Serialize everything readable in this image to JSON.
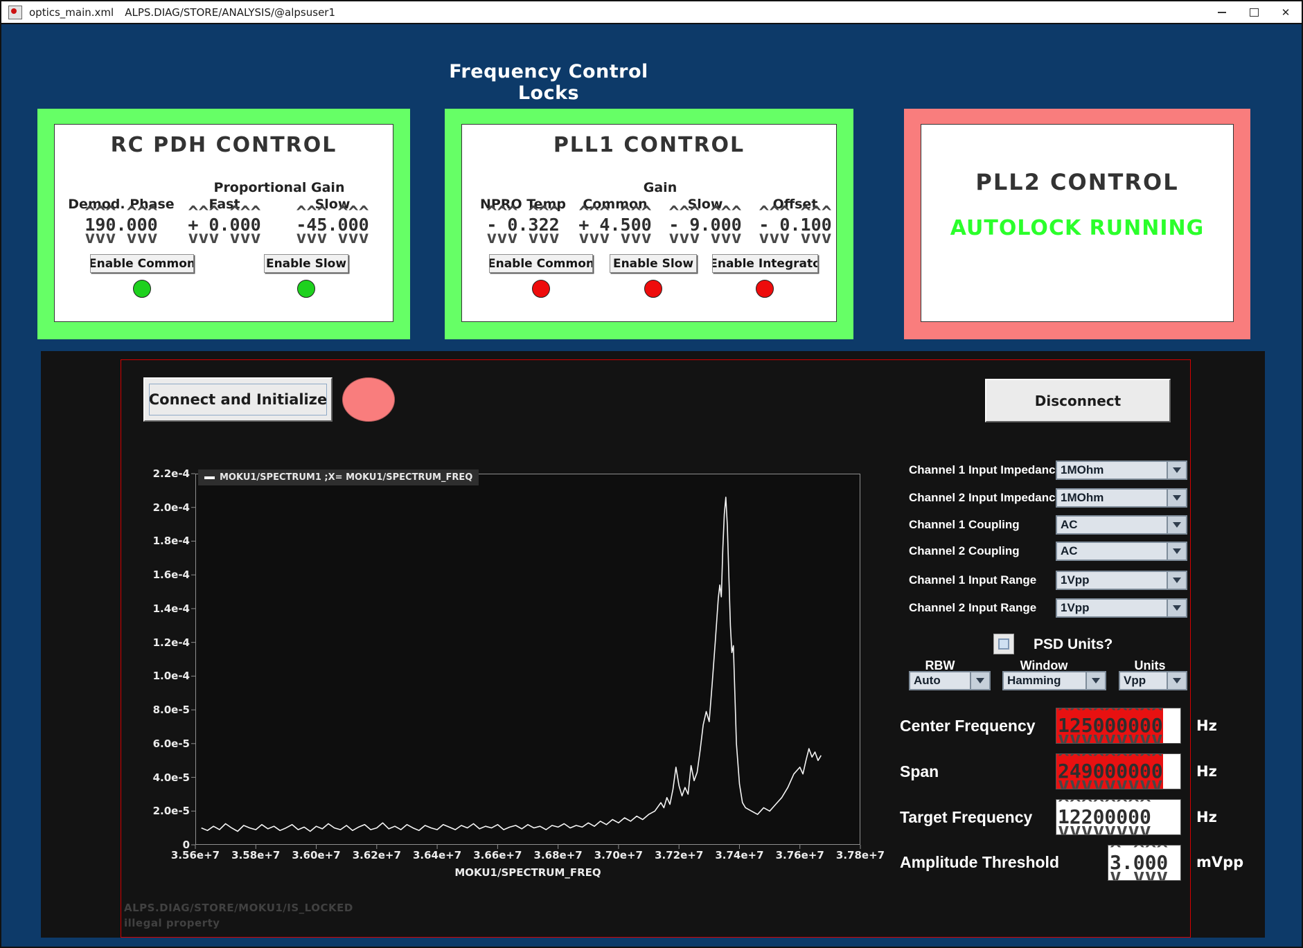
{
  "window": {
    "title": "optics_main.xml",
    "path": "ALPS.DIAG/STORE/ANALYSIS/@alpsuser1",
    "close_glyph": "✕"
  },
  "header": {
    "title": "Frequency Control Locks"
  },
  "colors": {
    "background_navy": "#0d3a69",
    "panel_green": "#66ff66",
    "panel_salmon": "#f97d7d",
    "status_green_text": "#2bff2b",
    "led_green": "#1ed11e",
    "led_red": "#ee0c0c",
    "alarm_red": "#e81111",
    "plot_line": "#f5f5f5"
  },
  "panels": {
    "rc_pdh": {
      "title": "RC PDH CONTROL",
      "group_label": "Proportional Gain",
      "columns": [
        {
          "label": "Demod. Phase",
          "value": "190.000"
        },
        {
          "label": "Fast",
          "value": "+ 0.000"
        },
        {
          "label": "Slow",
          "value": "-45.000"
        }
      ],
      "buttons": [
        {
          "label": "Enable Common",
          "led": "green"
        },
        {
          "label": "Enable Slow",
          "led": "green"
        }
      ]
    },
    "pll1": {
      "title": "PLL1 CONTROL",
      "group_label": "Gain",
      "columns": [
        {
          "label": "NPRO Temp",
          "value": "- 0.322"
        },
        {
          "label": "Common",
          "value": "+ 4.500"
        },
        {
          "label": "Slow",
          "value": "- 9.000"
        },
        {
          "label": "Offset",
          "value": "- 0.100"
        }
      ],
      "buttons": [
        {
          "label": "Enable Common",
          "led": "red"
        },
        {
          "label": "Enable Slow",
          "led": "red"
        },
        {
          "label": "Enable Integrato",
          "led": "red"
        }
      ]
    },
    "pll2": {
      "title": "PLL2 CONTROL",
      "status": "AUTOLOCK RUNNING"
    }
  },
  "moku": {
    "connect_label": "Connect and Initialize",
    "disconnect_label": "Disconnect",
    "channels": [
      {
        "label": "Channel 1 Input Impedance",
        "value": "1MOhm"
      },
      {
        "label": "Channel 2 Input Impedance",
        "value": "1MOhm"
      },
      {
        "label": "Channel 1 Coupling",
        "value": "AC"
      },
      {
        "label": "Channel 2 Coupling",
        "value": "AC"
      },
      {
        "label": "Channel 1 Input Range",
        "value": "1Vpp"
      },
      {
        "label": "Channel 2 Input Range",
        "value": "1Vpp"
      }
    ],
    "psd_label": "PSD Units?",
    "rbw": {
      "label": "RBW",
      "value": "Auto"
    },
    "win": {
      "label": "Window",
      "value": "Hamming"
    },
    "units_dd": {
      "label": "Units",
      "value": "Vpp"
    },
    "center": {
      "label": "Center Frequency",
      "value": "125000000",
      "unit": "Hz"
    },
    "span": {
      "label": "Span",
      "value": "249000000",
      "unit": "Hz"
    },
    "target": {
      "label": "Target Frequency",
      "value": "12200000",
      "unit": "Hz"
    },
    "amp": {
      "label": "Amplitude Threshold",
      "value": "3.000",
      "unit": "mVpp"
    },
    "error1": "ALPS.DIAG/STORE/MOKU1/IS_LOCKED",
    "error2": "illegal property"
  },
  "chart_data": {
    "type": "line",
    "legend": [
      "MOKU1/SPECTRUM1 ;X= MOKU1/SPECTRUM_FREQ"
    ],
    "xlabel": "MOKU1/SPECTRUM_FREQ",
    "x_ticks": [
      "3.56e+7",
      "3.58e+7",
      "3.60e+7",
      "3.62e+7",
      "3.64e+7",
      "3.66e+7",
      "3.68e+7",
      "3.70e+7",
      "3.72e+7",
      "3.74e+7",
      "3.76e+7",
      "3.78e+7"
    ],
    "y_ticks": [
      "2.2e-4",
      "2.0e-4",
      "1.8e-4",
      "1.6e-4",
      "1.4e-4",
      "1.2e-4",
      "1.0e-4",
      "8.0e-5",
      "6.0e-5",
      "4.0e-5",
      "2.0e-5",
      "0"
    ],
    "xlim": [
      35600000,
      37800000
    ],
    "ylim": [
      0,
      0.00022
    ],
    "grid": false,
    "legend_position": "top-left",
    "points_encoding": "x in 1e7 Hz, y in 1e-5 Vpp",
    "points": [
      [
        3.562,
        1.0
      ],
      [
        3.564,
        0.85
      ],
      [
        3.566,
        1.1
      ],
      [
        3.568,
        0.9
      ],
      [
        3.57,
        1.25
      ],
      [
        3.572,
        1.0
      ],
      [
        3.574,
        0.8
      ],
      [
        3.576,
        1.15
      ],
      [
        3.578,
        1.0
      ],
      [
        3.58,
        0.9
      ],
      [
        3.582,
        1.2
      ],
      [
        3.584,
        0.95
      ],
      [
        3.586,
        1.1
      ],
      [
        3.588,
        0.85
      ],
      [
        3.59,
        1.0
      ],
      [
        3.592,
        1.2
      ],
      [
        3.594,
        0.9
      ],
      [
        3.596,
        1.05
      ],
      [
        3.598,
        0.8
      ],
      [
        3.6,
        1.1
      ],
      [
        3.602,
        0.95
      ],
      [
        3.604,
        1.25
      ],
      [
        3.606,
        1.0
      ],
      [
        3.608,
        0.9
      ],
      [
        3.61,
        1.15
      ],
      [
        3.612,
        0.85
      ],
      [
        3.614,
        1.05
      ],
      [
        3.616,
        1.2
      ],
      [
        3.618,
        0.9
      ],
      [
        3.62,
        1.0
      ],
      [
        3.622,
        1.3
      ],
      [
        3.624,
        0.95
      ],
      [
        3.626,
        1.1
      ],
      [
        3.628,
        0.9
      ],
      [
        3.63,
        1.2
      ],
      [
        3.632,
        1.0
      ],
      [
        3.634,
        0.85
      ],
      [
        3.636,
        1.15
      ],
      [
        3.638,
        1.0
      ],
      [
        3.64,
        0.9
      ],
      [
        3.642,
        1.2
      ],
      [
        3.644,
        1.05
      ],
      [
        3.646,
        0.9
      ],
      [
        3.648,
        1.15
      ],
      [
        3.65,
        1.0
      ],
      [
        3.652,
        1.25
      ],
      [
        3.654,
        0.95
      ],
      [
        3.656,
        1.1
      ],
      [
        3.658,
        1.0
      ],
      [
        3.66,
        1.2
      ],
      [
        3.662,
        0.9
      ],
      [
        3.664,
        1.05
      ],
      [
        3.666,
        1.15
      ],
      [
        3.668,
        0.95
      ],
      [
        3.67,
        1.2
      ],
      [
        3.672,
        1.0
      ],
      [
        3.674,
        1.1
      ],
      [
        3.676,
        0.9
      ],
      [
        3.678,
        1.15
      ],
      [
        3.68,
        1.05
      ],
      [
        3.682,
        1.25
      ],
      [
        3.684,
        1.0
      ],
      [
        3.686,
        1.15
      ],
      [
        3.688,
        1.05
      ],
      [
        3.69,
        1.3
      ],
      [
        3.692,
        1.1
      ],
      [
        3.694,
        1.4
      ],
      [
        3.696,
        1.2
      ],
      [
        3.698,
        1.5
      ],
      [
        3.7,
        1.3
      ],
      [
        3.702,
        1.6
      ],
      [
        3.704,
        1.4
      ],
      [
        3.706,
        1.7
      ],
      [
        3.708,
        1.5
      ],
      [
        3.71,
        1.8
      ],
      [
        3.712,
        2.0
      ],
      [
        3.714,
        2.5
      ],
      [
        3.715,
        2.2
      ],
      [
        3.716,
        2.8
      ],
      [
        3.717,
        2.4
      ],
      [
        3.718,
        3.3
      ],
      [
        3.719,
        4.6
      ],
      [
        3.72,
        3.5
      ],
      [
        3.721,
        2.9
      ],
      [
        3.722,
        3.4
      ],
      [
        3.723,
        3.0
      ],
      [
        3.724,
        4.7
      ],
      [
        3.725,
        3.8
      ],
      [
        3.726,
        4.3
      ],
      [
        3.727,
        5.6
      ],
      [
        3.728,
        7.1
      ],
      [
        3.729,
        7.9
      ],
      [
        3.73,
        7.3
      ],
      [
        3.731,
        9.6
      ],
      [
        3.732,
        12.0
      ],
      [
        3.733,
        14.6
      ],
      [
        3.7335,
        15.4
      ],
      [
        3.734,
        14.7
      ],
      [
        3.7345,
        17.6
      ],
      [
        3.735,
        19.6
      ],
      [
        3.7355,
        20.6
      ],
      [
        3.736,
        18.9
      ],
      [
        3.7365,
        15.9
      ],
      [
        3.737,
        13.0
      ],
      [
        3.7375,
        11.4
      ],
      [
        3.738,
        11.8
      ],
      [
        3.7385,
        8.9
      ],
      [
        3.739,
        6.0
      ],
      [
        3.74,
        3.6
      ],
      [
        3.741,
        2.5
      ],
      [
        3.742,
        2.2
      ],
      [
        3.744,
        2.0
      ],
      [
        3.746,
        1.8
      ],
      [
        3.748,
        2.2
      ],
      [
        3.75,
        2.0
      ],
      [
        3.752,
        2.4
      ],
      [
        3.754,
        2.8
      ],
      [
        3.756,
        3.4
      ],
      [
        3.758,
        4.2
      ],
      [
        3.76,
        4.6
      ],
      [
        3.761,
        4.2
      ],
      [
        3.762,
        5.0
      ],
      [
        3.763,
        5.7
      ],
      [
        3.764,
        5.2
      ],
      [
        3.765,
        5.5
      ],
      [
        3.766,
        5.0
      ],
      [
        3.767,
        5.3
      ]
    ]
  }
}
